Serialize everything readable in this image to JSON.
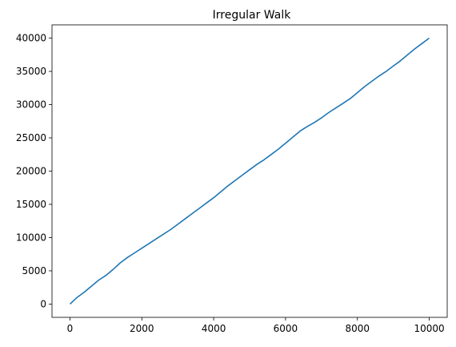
{
  "chart_data": {
    "type": "line",
    "title": "Irregular Walk",
    "xlabel": "",
    "ylabel": "",
    "xlim": [
      -500,
      10500
    ],
    "ylim": [
      -2000,
      42000
    ],
    "xticks": [
      0,
      2000,
      4000,
      6000,
      8000,
      10000
    ],
    "yticks": [
      0,
      5000,
      10000,
      15000,
      20000,
      25000,
      30000,
      35000,
      40000
    ],
    "grid": false,
    "line_color": "#1f77b4",
    "series": [
      {
        "x": [
          0,
          200,
          400,
          600,
          800,
          1000,
          1200,
          1400,
          1600,
          1800,
          2000,
          2200,
          2400,
          2600,
          2800,
          3000,
          3200,
          3400,
          3600,
          3800,
          4000,
          4200,
          4400,
          4600,
          4800,
          5000,
          5200,
          5400,
          5600,
          5800,
          6000,
          6200,
          6400,
          6600,
          6800,
          7000,
          7200,
          7400,
          7600,
          7800,
          8000,
          8200,
          8400,
          8600,
          8800,
          9000,
          9200,
          9400,
          9600,
          9800,
          10000
        ],
        "values": [
          0,
          1000,
          1800,
          2700,
          3600,
          4300,
          5200,
          6200,
          7000,
          7700,
          8400,
          9100,
          9800,
          10500,
          11200,
          12000,
          12800,
          13600,
          14400,
          15200,
          16000,
          16900,
          17800,
          18600,
          19400,
          20200,
          21000,
          21700,
          22500,
          23300,
          24200,
          25100,
          26000,
          26700,
          27300,
          28000,
          28800,
          29500,
          30200,
          30900,
          31800,
          32700,
          33500,
          34300,
          35000,
          35800,
          36600,
          37500,
          38400,
          39200,
          40000
        ]
      }
    ]
  }
}
